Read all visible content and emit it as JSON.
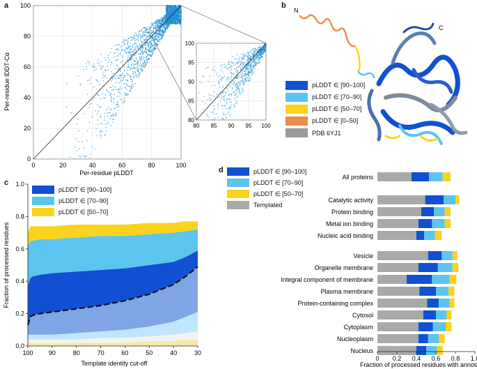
{
  "panel_labels": {
    "a": "a",
    "b": "b",
    "c": "c",
    "d": "d"
  },
  "colors": {
    "very_high": "#1150d2",
    "confident": "#5bc5ef",
    "low": "#fbd21e",
    "very_low": "#f08a4b",
    "pdb": "#9a9a9a",
    "scatter": "#1f8fd6",
    "band_light": "#bfe6fa",
    "band_light2": "#f5eaa6",
    "band_mid": "#7fa5e6"
  },
  "legend_b": {
    "items": [
      {
        "label": "pLDDT ∈ [90–100]",
        "color": "#1150d2"
      },
      {
        "label": "pLDDT ∈ [70–90]",
        "color": "#5bc5ef"
      },
      {
        "label": "pLDDT ∈ [50–70]",
        "color": "#fbd21e"
      },
      {
        "label": "pLDDT ∈ [0–50]",
        "color": "#f08a4b"
      },
      {
        "label": "PDB 6YJ1",
        "color": "#9a9a9a"
      }
    ],
    "n_label": "N",
    "c_label": "C"
  },
  "legend_c": {
    "items": [
      {
        "label": "pLDDT ∈ [90–100]",
        "color": "#1150d2"
      },
      {
        "label": "pLDDT ∈ [70–90]",
        "color": "#5bc5ef"
      },
      {
        "label": "pLDDT ∈ [50–70]",
        "color": "#fbd21e"
      }
    ]
  },
  "legend_d": {
    "items": [
      {
        "label": "pLDDT ∈ [90–100]",
        "color": "#1150d2"
      },
      {
        "label": "pLDDT ∈ [70–90]",
        "color": "#5bc5ef"
      },
      {
        "label": "pLDDT ∈ [50–70]",
        "color": "#fbd21e"
      },
      {
        "label": "Templated",
        "color": "#a9a9a9"
      }
    ]
  },
  "chart_data": [
    {
      "id": "a",
      "type": "scatter",
      "title": "",
      "xlabel": "Per-residue pLDDT",
      "ylabel": "Per-residue lDDT-Cα",
      "xlim": [
        0,
        100
      ],
      "ylim": [
        0,
        100
      ],
      "xticks": [
        0,
        20,
        40,
        60,
        80,
        100
      ],
      "yticks": [
        0,
        20,
        40,
        60,
        80,
        100
      ],
      "grid": true,
      "diagonal": true,
      "inset": {
        "xlim": [
          80,
          100
        ],
        "ylim": [
          80,
          100
        ],
        "xticks": [
          80,
          85,
          90,
          95,
          100
        ],
        "yticks": [
          80,
          85,
          90,
          95,
          100
        ]
      }
    },
    {
      "id": "c",
      "type": "area",
      "xlabel": "Template identity cut-off",
      "ylabel": "Fraction of processed residues",
      "xlim": [
        100,
        30
      ],
      "ylim": [
        0,
        1.0
      ],
      "xticks": [
        100,
        90,
        80,
        70,
        60,
        50,
        40,
        30
      ],
      "yticks": [
        0,
        0.2,
        0.4,
        0.6,
        0.8,
        1.0
      ],
      "x": [
        100,
        99,
        98,
        95,
        90,
        80,
        70,
        60,
        50,
        40,
        35,
        30
      ],
      "templated_upper": [
        0.13,
        0.18,
        0.19,
        0.2,
        0.21,
        0.23,
        0.25,
        0.28,
        0.32,
        0.38,
        0.43,
        0.49
      ],
      "band_edges": {
        "b1": [
          0.02,
          0.02,
          0.02,
          0.02,
          0.02,
          0.02,
          0.02,
          0.02,
          0.03,
          0.03,
          0.04,
          0.04
        ],
        "b2": [
          0.04,
          0.04,
          0.04,
          0.04,
          0.04,
          0.04,
          0.05,
          0.05,
          0.06,
          0.07,
          0.08,
          0.09
        ],
        "b3": [
          0.07,
          0.07,
          0.07,
          0.07,
          0.07,
          0.08,
          0.09,
          0.1,
          0.12,
          0.15,
          0.18,
          0.21
        ],
        "very_high": [
          0.37,
          0.42,
          0.43,
          0.44,
          0.45,
          0.46,
          0.47,
          0.48,
          0.5,
          0.52,
          0.55,
          0.59
        ],
        "confident": [
          0.62,
          0.65,
          0.65,
          0.66,
          0.66,
          0.67,
          0.68,
          0.68,
          0.69,
          0.7,
          0.71,
          0.72
        ],
        "low": [
          0.7,
          0.74,
          0.74,
          0.74,
          0.74,
          0.75,
          0.75,
          0.75,
          0.76,
          0.76,
          0.77,
          0.77
        ]
      }
    },
    {
      "id": "d",
      "type": "bar",
      "orientation": "horizontal",
      "stacked": true,
      "xlabel": "Fraction of processed residues with annotation",
      "xlim": [
        0,
        1.0
      ],
      "xticks": [
        0,
        0.2,
        0.4,
        0.6,
        0.8,
        1.0
      ],
      "series_names": [
        "Templated",
        "pLDDT ∈ [90–100]",
        "pLDDT ∈ [70–90]",
        "pLDDT ∈ [50–70]"
      ],
      "categories": [
        {
          "label": "All proteins",
          "group": 0,
          "values": [
            0.35,
            0.18,
            0.14,
            0.08
          ]
        },
        {
          "label": "Catalytic activity",
          "group": 1,
          "values": [
            0.49,
            0.19,
            0.12,
            0.04
          ]
        },
        {
          "label": "Protein binding",
          "group": 1,
          "values": [
            0.45,
            0.13,
            0.11,
            0.06
          ]
        },
        {
          "label": "Metal ion binding",
          "group": 1,
          "values": [
            0.42,
            0.14,
            0.13,
            0.06
          ]
        },
        {
          "label": "Nucleic acid binding",
          "group": 1,
          "values": [
            0.4,
            0.08,
            0.11,
            0.07
          ]
        },
        {
          "label": "Vesicle",
          "group": 2,
          "values": [
            0.52,
            0.14,
            0.11,
            0.05
          ]
        },
        {
          "label": "Organelle membrane",
          "group": 2,
          "values": [
            0.42,
            0.2,
            0.15,
            0.06
          ]
        },
        {
          "label": "Integral component of membrane",
          "group": 2,
          "values": [
            0.3,
            0.26,
            0.18,
            0.07
          ]
        },
        {
          "label": "Plasma membrane",
          "group": 2,
          "values": [
            0.43,
            0.17,
            0.13,
            0.06
          ]
        },
        {
          "label": "Protein-containing complex",
          "group": 2,
          "values": [
            0.51,
            0.12,
            0.11,
            0.05
          ]
        },
        {
          "label": "Cytosol",
          "group": 2,
          "values": [
            0.47,
            0.13,
            0.11,
            0.05
          ]
        },
        {
          "label": "Cytoplasm",
          "group": 2,
          "values": [
            0.42,
            0.15,
            0.13,
            0.06
          ]
        },
        {
          "label": "Nucleoplasm",
          "group": 2,
          "values": [
            0.42,
            0.1,
            0.11,
            0.06
          ]
        },
        {
          "label": "Nucleus",
          "group": 2,
          "values": [
            0.4,
            0.1,
            0.11,
            0.06
          ]
        }
      ]
    }
  ]
}
